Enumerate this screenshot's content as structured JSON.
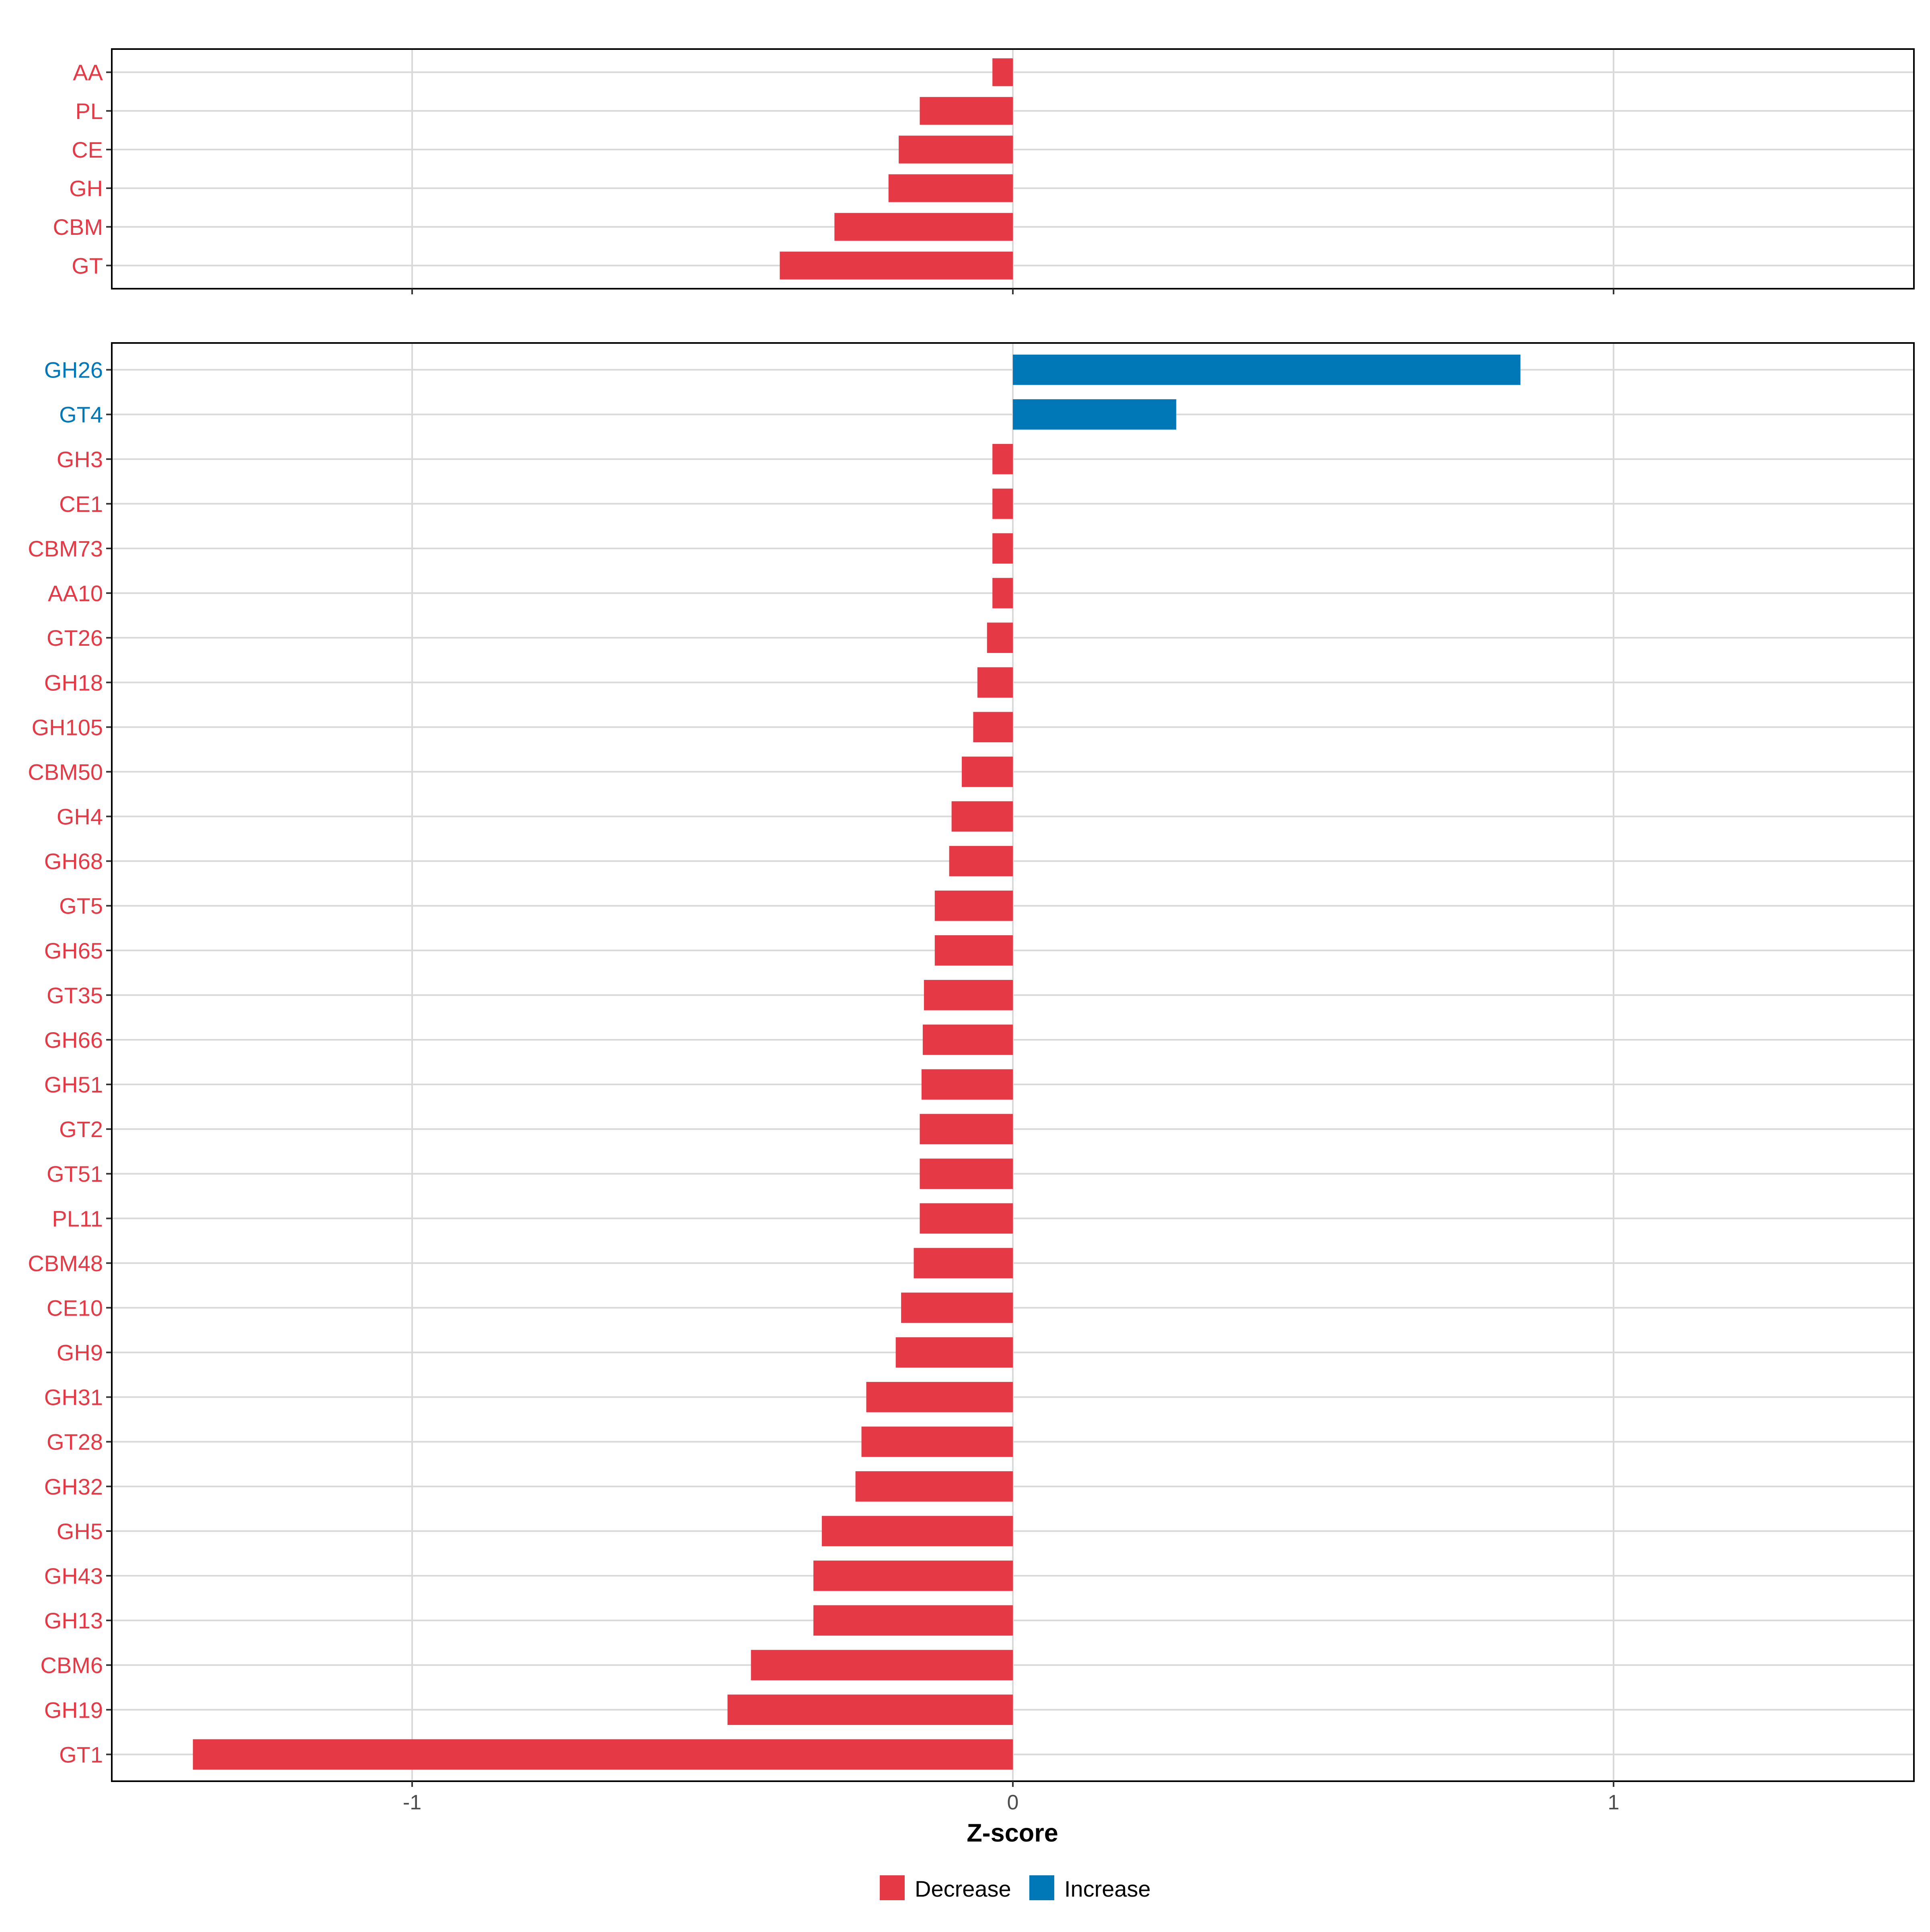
{
  "colors": {
    "decrease": "#E63946",
    "increase": "#0077B6",
    "grid": "#D9D9D9",
    "axis": "#333333"
  },
  "chart_data": [
    {
      "type": "bar",
      "orientation": "horizontal",
      "panel": "top",
      "categories": [
        "AA",
        "PL",
        "CE",
        "GH",
        "CBM",
        "GT"
      ],
      "values": [
        -0.034,
        -0.155,
        -0.19,
        -0.207,
        -0.297,
        -0.388
      ],
      "xlim": [
        -1.5,
        1.5
      ],
      "grid": true
    },
    {
      "type": "bar",
      "orientation": "horizontal",
      "panel": "bottom",
      "categories": [
        "GH26",
        "GT4",
        "GH3",
        "CE1",
        "CBM73",
        "AA10",
        "GT26",
        "GH18",
        "GH105",
        "CBM50",
        "GH4",
        "GH68",
        "GT5",
        "GH65",
        "GT35",
        "GH66",
        "GH51",
        "GT2",
        "GT51",
        "PL11",
        "CBM48",
        "CE10",
        "GH9",
        "GH31",
        "GT28",
        "GH32",
        "GH5",
        "GH43",
        "GH13",
        "CBM6",
        "GH19",
        "GT1"
      ],
      "values": [
        0.845,
        0.272,
        -0.034,
        -0.034,
        -0.034,
        -0.034,
        -0.043,
        -0.059,
        -0.066,
        -0.085,
        -0.102,
        -0.106,
        -0.13,
        -0.13,
        -0.148,
        -0.15,
        -0.152,
        -0.155,
        -0.155,
        -0.155,
        -0.165,
        -0.186,
        -0.195,
        -0.244,
        -0.252,
        -0.262,
        -0.318,
        -0.332,
        -0.332,
        -0.436,
        -0.475,
        -1.365
      ],
      "xlim": [
        -1.5,
        1.5
      ],
      "xticks": [
        -1,
        0,
        1
      ],
      "xlabel": "Z-score",
      "grid": true
    }
  ],
  "legend": {
    "position": "bottom",
    "items": [
      {
        "label": "Decrease",
        "key": "decrease"
      },
      {
        "label": "Increase",
        "key": "increase"
      }
    ]
  }
}
